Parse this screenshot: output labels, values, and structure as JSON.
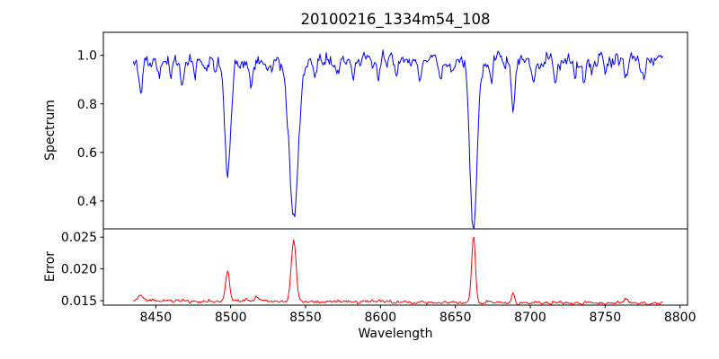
{
  "chart_data": {
    "type": "line",
    "title": "20100216_1334m54_108",
    "xlabel": "Wavelength",
    "xlim": [
      8415,
      8805
    ],
    "xticks": [
      8450,
      8500,
      8550,
      8600,
      8650,
      8700,
      8750,
      8800
    ],
    "xtick_labels": [
      "8450",
      "8500",
      "8550",
      "8600",
      "8650",
      "8700",
      "8750",
      "8800"
    ],
    "x_data_range": [
      8435,
      8789
    ],
    "sample_step": 0.7,
    "grid": false,
    "legend": "none",
    "panels": [
      {
        "name": "spectrum",
        "ylabel": "Spectrum",
        "color": "#0000ff",
        "ylim": [
          0.285,
          1.095
        ],
        "yticks": [
          0.4,
          0.6,
          0.8,
          1.0
        ],
        "ytick_labels": [
          "0.4",
          "0.6",
          "0.8",
          "1.0"
        ],
        "continuum": 0.975,
        "noise_sigma": 0.016,
        "noise_rho": 0.5,
        "absorption_lines": [
          {
            "center": 8440.0,
            "depth": 0.13,
            "sigma": 1.1
          },
          {
            "center": 8452.0,
            "depth": 0.06,
            "sigma": 0.9
          },
          {
            "center": 8460.0,
            "depth": 0.05,
            "sigma": 0.9
          },
          {
            "center": 8468.0,
            "depth": 0.12,
            "sigma": 1.0
          },
          {
            "center": 8476.0,
            "depth": 0.06,
            "sigma": 0.9
          },
          {
            "center": 8490.0,
            "depth": 0.05,
            "sigma": 0.9
          },
          {
            "center": 8498.02,
            "depth": 0.49,
            "sigma": 1.9
          },
          {
            "center": 8514.0,
            "depth": 0.12,
            "sigma": 1.0
          },
          {
            "center": 8527.0,
            "depth": 0.05,
            "sigma": 0.9
          },
          {
            "center": 8542.09,
            "depth": 0.66,
            "sigma": 3.0
          },
          {
            "center": 8556.0,
            "depth": 0.05,
            "sigma": 0.9
          },
          {
            "center": 8572.0,
            "depth": 0.06,
            "sigma": 0.9
          },
          {
            "center": 8582.0,
            "depth": 0.07,
            "sigma": 0.9
          },
          {
            "center": 8598.0,
            "depth": 0.06,
            "sigma": 0.9
          },
          {
            "center": 8611.0,
            "depth": 0.09,
            "sigma": 1.0
          },
          {
            "center": 8626.0,
            "depth": 0.07,
            "sigma": 0.9
          },
          {
            "center": 8640.0,
            "depth": 0.05,
            "sigma": 0.9
          },
          {
            "center": 8648.0,
            "depth": 0.06,
            "sigma": 0.9
          },
          {
            "center": 8662.14,
            "depth": 0.68,
            "sigma": 2.4
          },
          {
            "center": 8674.0,
            "depth": 0.07,
            "sigma": 0.9
          },
          {
            "center": 8688.6,
            "depth": 0.21,
            "sigma": 1.1
          },
          {
            "center": 8702.0,
            "depth": 0.06,
            "sigma": 0.9
          },
          {
            "center": 8717.0,
            "depth": 0.07,
            "sigma": 0.9
          },
          {
            "center": 8730.0,
            "depth": 0.06,
            "sigma": 0.9
          },
          {
            "center": 8736.0,
            "depth": 0.09,
            "sigma": 1.0
          },
          {
            "center": 8750.0,
            "depth": 0.06,
            "sigma": 0.9
          },
          {
            "center": 8764.0,
            "depth": 0.1,
            "sigma": 1.0
          },
          {
            "center": 8776.0,
            "depth": 0.06,
            "sigma": 0.9
          }
        ]
      },
      {
        "name": "error",
        "ylabel": "Error",
        "color": "#ff0000",
        "ylim": [
          0.0143,
          0.0263
        ],
        "yticks": [
          0.015,
          0.02,
          0.025
        ],
        "ytick_labels": [
          "0.015",
          "0.020",
          "0.025"
        ],
        "baseline_left": 0.015,
        "baseline_right": 0.0146,
        "noise_sigma": 0.00013,
        "noise_rho": 0.4,
        "emission_peaks": [
          {
            "center": 8440.0,
            "height": 0.0008,
            "sigma": 2.0
          },
          {
            "center": 8498.02,
            "height": 0.0049,
            "sigma": 1.3
          },
          {
            "center": 8517.0,
            "height": 0.0008,
            "sigma": 1.0
          },
          {
            "center": 8542.09,
            "height": 0.0096,
            "sigma": 1.6
          },
          {
            "center": 8662.14,
            "height": 0.0105,
            "sigma": 1.2
          },
          {
            "center": 8688.6,
            "height": 0.0017,
            "sigma": 1.0
          },
          {
            "center": 8764.0,
            "height": 0.0006,
            "sigma": 1.0
          }
        ]
      }
    ]
  }
}
